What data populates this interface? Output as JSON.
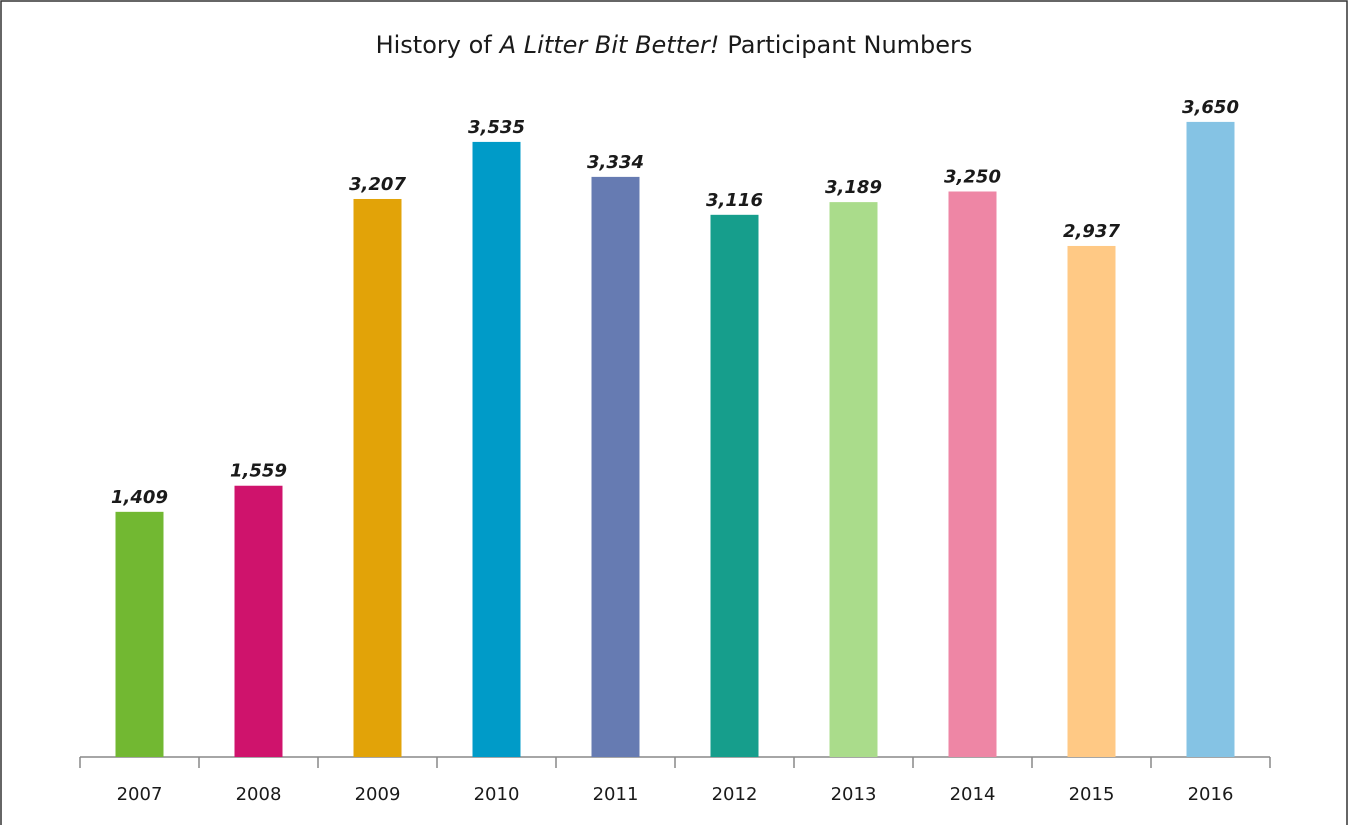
{
  "chart_data": {
    "type": "bar",
    "title": [
      "History of",
      "A Litter Bit Better!",
      "Participant Numbers"
    ],
    "categories": [
      "2007",
      "2008",
      "2009",
      "2010",
      "2011",
      "2012",
      "2013",
      "2014",
      "2015",
      "2016"
    ],
    "values": [
      1409,
      1559,
      3207,
      3535,
      3334,
      3116,
      3189,
      3250,
      2937,
      3650
    ],
    "value_labels": [
      "1,409",
      "1,559",
      "3,207",
      "3,535",
      "3,334",
      "3,116",
      "3,189",
      "3,250",
      "2,937",
      "3,650"
    ],
    "colors": [
      "#72b832",
      "#cf136c",
      "#e2a308",
      "#009bc8",
      "#667bb2",
      "#169e8c",
      "#aadc8b",
      "#ee86a5",
      "#ffc985",
      "#85c3e4"
    ],
    "ylim": [
      0,
      4000
    ],
    "grid": false
  }
}
